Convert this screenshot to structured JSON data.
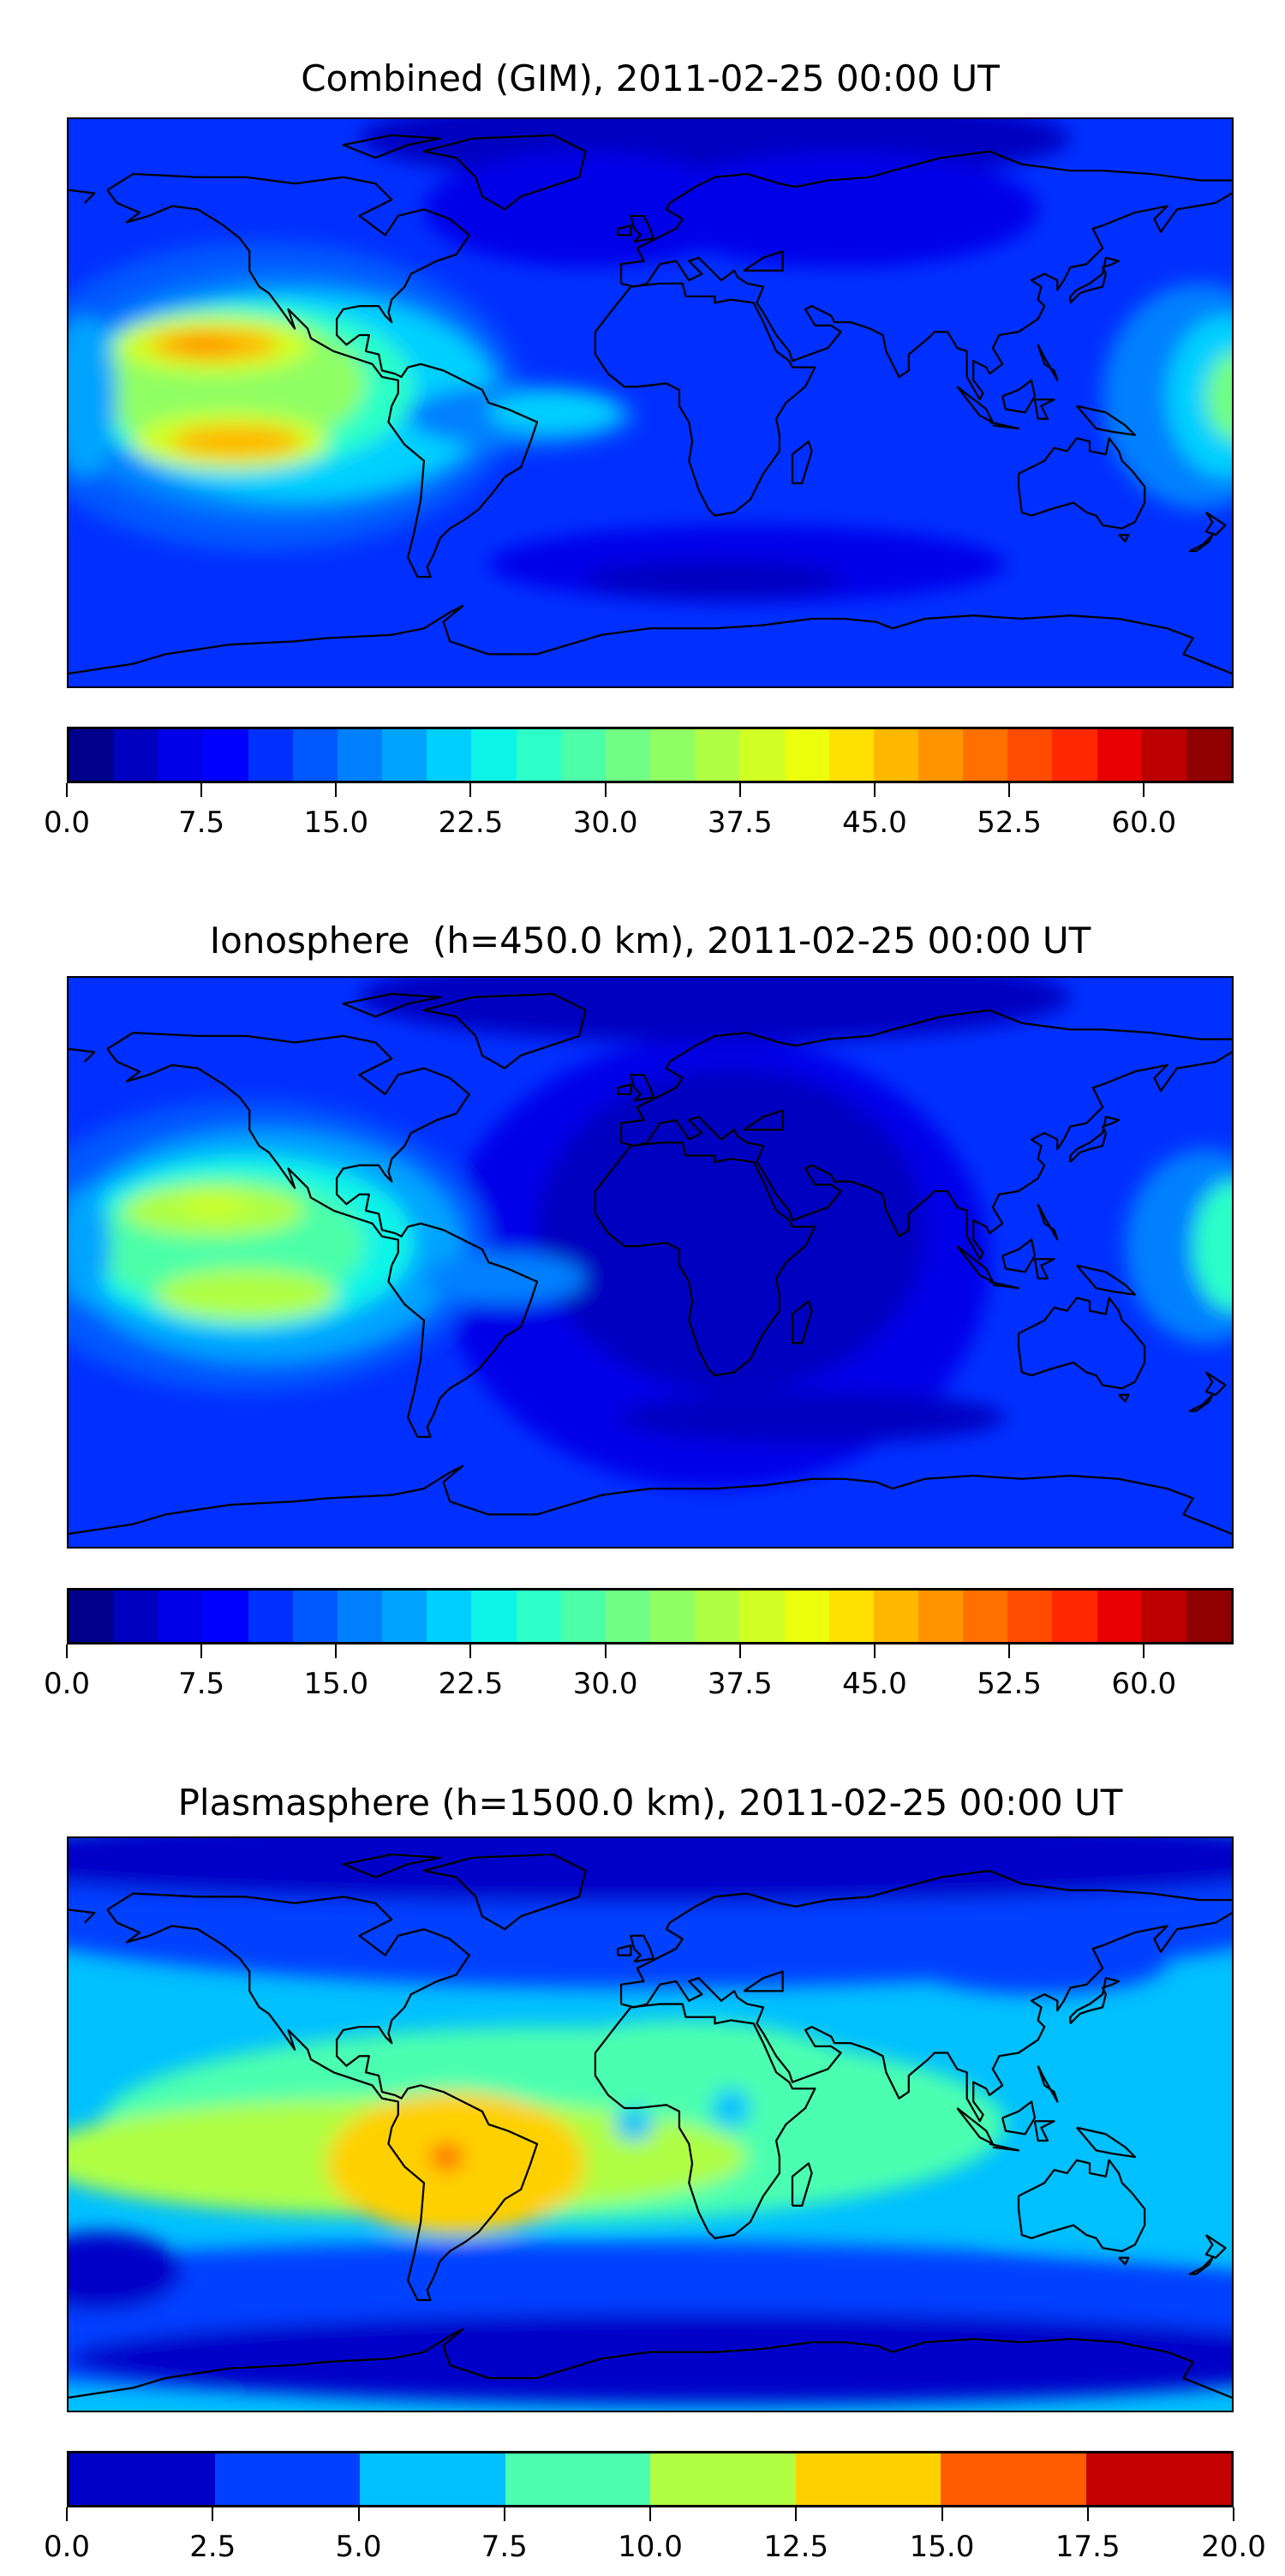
{
  "chart_data": [
    {
      "type": "heatmap",
      "title": "Combined (GIM), 2011-02-25 00:00 UT",
      "colorbar": {
        "range": [
          0,
          65
        ],
        "step": 2.5,
        "ticks": [
          "0.0",
          "7.5",
          "15.0",
          "22.5",
          "30.0",
          "37.5",
          "45.0",
          "52.5",
          "60.0"
        ],
        "tick_values": [
          0,
          7.5,
          15,
          22.5,
          30,
          37.5,
          45,
          52.5,
          60
        ],
        "colors": [
          "#00008c",
          "#0000c0",
          "#0000e8",
          "#0000ff",
          "#0030ff",
          "#0058ff",
          "#0080ff",
          "#00a4ff",
          "#00d0ff",
          "#0cf4e8",
          "#2cffc8",
          "#4cffa8",
          "#70ff84",
          "#90ff64",
          "#b0ff44",
          "#d0ff24",
          "#ecff0c",
          "#ffe000",
          "#ffb800",
          "#ff9400",
          "#ff7000",
          "#ff4c00",
          "#ff2800",
          "#e80000",
          "#bc0000",
          "#900000"
        ]
      },
      "projection": "plate-carree, global, coastlines"
    },
    {
      "type": "heatmap",
      "title": "Ionosphere  (h=450.0 km), 2011-02-25 00:00 UT",
      "colorbar": {
        "range": [
          0,
          65
        ],
        "step": 2.5,
        "ticks": [
          "0.0",
          "7.5",
          "15.0",
          "22.5",
          "30.0",
          "37.5",
          "45.0",
          "52.5",
          "60.0"
        ],
        "tick_values": [
          0,
          7.5,
          15,
          22.5,
          30,
          37.5,
          45,
          52.5,
          60
        ],
        "colors": [
          "#00008c",
          "#0000c0",
          "#0000e8",
          "#0000ff",
          "#0030ff",
          "#0058ff",
          "#0080ff",
          "#00a4ff",
          "#00d0ff",
          "#0cf4e8",
          "#2cffc8",
          "#4cffa8",
          "#70ff84",
          "#90ff64",
          "#b0ff44",
          "#d0ff24",
          "#ecff0c",
          "#ffe000",
          "#ffb800",
          "#ff9400",
          "#ff7000",
          "#ff4c00",
          "#ff2800",
          "#e80000",
          "#bc0000",
          "#900000"
        ]
      },
      "projection": "plate-carree, global, coastlines"
    },
    {
      "type": "heatmap",
      "title": "Plasmasphere (h=1500.0 km), 2011-02-25 00:00 UT",
      "colorbar": {
        "range": [
          0,
          20
        ],
        "step": 2.5,
        "ticks": [
          "0.0",
          "2.5",
          "5.0",
          "7.5",
          "10.0",
          "12.5",
          "15.0",
          "17.5",
          "20.0"
        ],
        "tick_values": [
          0,
          2.5,
          5,
          7.5,
          10,
          12.5,
          15,
          17.5,
          20
        ],
        "colors": [
          "#0000c8",
          "#0040ff",
          "#00c0ff",
          "#4cffb0",
          "#b0ff44",
          "#ffd000",
          "#ff5c00",
          "#c40000"
        ]
      },
      "projection": "plate-carree, global, coastlines"
    }
  ]
}
